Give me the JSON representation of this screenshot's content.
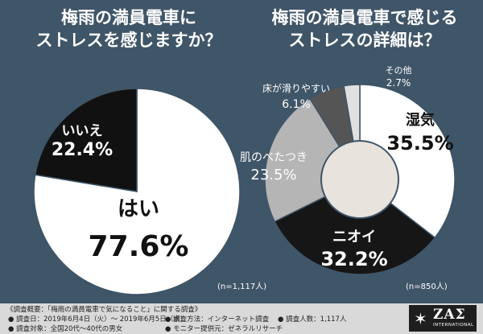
{
  "left_title": {
    "line1": "梅雨の満員電車に",
    "line2": "ストレスを感じますか？"
  },
  "right_title": {
    "line1": "梅雨の満員電車で感じる",
    "line2": "ストレスの詳細は？"
  },
  "chart_data": [
    {
      "type": "pie",
      "title": "梅雨の満員電車にストレスを感じますか？",
      "n_label": "(n=1,117人)",
      "slices": [
        {
          "label": "はい",
          "value": 77.6,
          "value_text": "77.6%",
          "color": "#ffffff"
        },
        {
          "label": "いいえ",
          "value": 22.4,
          "value_text": "22.4%",
          "color": "#111111"
        }
      ]
    },
    {
      "type": "pie",
      "title": "梅雨の満員電車で感じるストレスの詳細は？",
      "n_label": "(n=850人)",
      "slices": [
        {
          "label": "湿気",
          "value": 35.5,
          "value_text": "35.5%",
          "color": "#ffffff"
        },
        {
          "label": "ニオイ",
          "value": 32.2,
          "value_text": "32.2%",
          "color": "#161616"
        },
        {
          "label": "肌のべたつき",
          "value": 23.5,
          "value_text": "23.5%",
          "color": "#b5b5b5"
        },
        {
          "label": "床が滑りやすい",
          "value": 6.1,
          "value_text": "6.1%",
          "color": "#555555"
        },
        {
          "label": "その他",
          "value": 2.7,
          "value_text": "2.7%",
          "color": "#e0e0e0"
        }
      ]
    }
  ],
  "footer": {
    "heading": "《調査概要：「梅雨の満員電車で気になること」に関する調査》",
    "date": "● 調査日：2019年6月4日（火）～ 2019年6月5日（水）",
    "method": "● 調査方法：インターネット調査",
    "count": "● 調査人数：1,117人",
    "target": "● 調査対象：全国20代～40代の男女",
    "provider": "● モニター提供元：ゼネラルリサーチ"
  },
  "logo": {
    "main": "ZAΣ",
    "sub": "INTERNATIONAL"
  },
  "colors": {
    "background": "#3f5568",
    "footer": "#d9d9d9"
  }
}
